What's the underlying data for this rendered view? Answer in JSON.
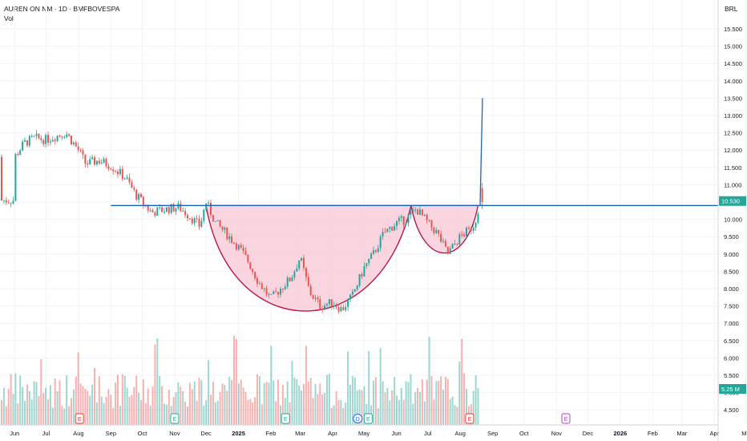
{
  "header": {
    "title": "AUREN ON NM · 1D · BMFBOVESPA",
    "volume_label": "Vol",
    "currency": "BRL"
  },
  "price_tags": {
    "last_price": "10.530",
    "volume": "5.25 M"
  },
  "colors": {
    "up": "#26a69a",
    "down": "#ef5350",
    "pattern_fill": "#f8c7d4",
    "pattern_stroke": "#b8174a",
    "trend_line": "#1565c0",
    "price_tag": "#26a69a",
    "grid": "#f0f3fa",
    "earnings_red": "#e53935",
    "earnings_green": "#26a69a",
    "dividend_blue": "#2962ff",
    "future_purple": "#ab47bc"
  },
  "chart_data": {
    "type": "candlestick",
    "title": "AUREN ON NM · 1D · BMFBOVESPA",
    "y_ticks": [
      "15.500",
      "15.000",
      "14.500",
      "14.000",
      "13.500",
      "13.000",
      "12.500",
      "12.000",
      "11.500",
      "11.000",
      "10.500",
      "10.000",
      "9.500",
      "9.000",
      "8.500",
      "8.000",
      "7.500",
      "7.000",
      "6.500",
      "6.000",
      "5.500",
      "5.000",
      "4.500"
    ],
    "ylim": [
      4.3,
      15.9
    ],
    "x_ticks": [
      "Jun",
      "Jul",
      "Aug",
      "Sep",
      "Oct",
      "Nov",
      "Dec",
      "2025",
      "Feb",
      "Mar",
      "Apr",
      "May",
      "Jun",
      "Jul",
      "Aug",
      "Sep",
      "Oct",
      "Nov",
      "Dec",
      "2026",
      "Feb",
      "Mar",
      "Apr",
      "Ma"
    ],
    "grid": true,
    "price_path": [
      [
        "2024-06-01",
        11.8
      ],
      [
        "2024-06-10",
        12.2
      ],
      [
        "2024-06-20",
        12.35
      ],
      [
        "2024-07-01",
        12.3
      ],
      [
        "2024-07-10",
        12.4
      ],
      [
        "2024-07-20",
        12.5
      ],
      [
        "2024-08-01",
        12.0
      ],
      [
        "2024-08-08",
        11.6
      ],
      [
        "2024-08-20",
        11.7
      ],
      [
        "2024-09-01",
        11.55
      ],
      [
        "2024-09-15",
        11.2
      ],
      [
        "2024-09-25",
        10.7
      ],
      [
        "2024-10-01",
        10.5
      ],
      [
        "2024-10-10",
        10.2
      ],
      [
        "2024-10-25",
        10.3
      ],
      [
        "2024-11-05",
        10.35
      ],
      [
        "2024-11-15",
        10.1
      ],
      [
        "2024-11-25",
        9.8
      ],
      [
        "2024-12-01",
        10.5
      ],
      [
        "2024-12-10",
        9.9
      ],
      [
        "2024-12-20",
        9.6
      ],
      [
        "2025-01-01",
        9.2
      ],
      [
        "2025-01-10",
        8.8
      ],
      [
        "2025-01-20",
        8.2
      ],
      [
        "2025-02-01",
        7.7
      ],
      [
        "2025-02-10",
        8.0
      ],
      [
        "2025-02-20",
        8.3
      ],
      [
        "2025-03-01",
        8.9
      ],
      [
        "2025-03-10",
        7.9
      ],
      [
        "2025-03-20",
        7.5
      ],
      [
        "2025-04-01",
        7.6
      ],
      [
        "2025-04-10",
        7.4
      ],
      [
        "2025-04-20",
        7.8
      ],
      [
        "2025-05-01",
        8.6
      ],
      [
        "2025-05-10",
        9.0
      ],
      [
        "2025-05-20",
        9.6
      ],
      [
        "2025-06-01",
        9.9
      ],
      [
        "2025-06-10",
        10.0
      ],
      [
        "2025-06-20",
        10.3
      ],
      [
        "2025-07-01",
        9.9
      ],
      [
        "2025-07-10",
        9.6
      ],
      [
        "2025-07-20",
        9.0
      ],
      [
        "2025-08-01",
        9.5
      ],
      [
        "2025-08-10",
        9.7
      ],
      [
        "2025-08-15",
        9.9
      ],
      [
        "2025-08-20",
        10.55
      ]
    ],
    "resistance_line": 10.4,
    "projection_target": 13.5,
    "cup_bottom": 6.8,
    "handle_bottom": 8.85,
    "events": [
      {
        "date": "2024-08-02",
        "label": "E",
        "kind": "earnings_red"
      },
      {
        "date": "2024-11-01",
        "label": "E",
        "kind": "earnings_green"
      },
      {
        "date": "2025-02-15",
        "label": "E",
        "kind": "earnings_green"
      },
      {
        "date": "2025-04-25",
        "label": "D",
        "kind": "dividend_blue"
      },
      {
        "date": "2025-05-05",
        "label": "E",
        "kind": "earnings_green"
      },
      {
        "date": "2025-08-10",
        "label": "E",
        "kind": "earnings_red"
      },
      {
        "date": "2025-11-10",
        "label": "E",
        "kind": "future_purple"
      }
    ]
  }
}
